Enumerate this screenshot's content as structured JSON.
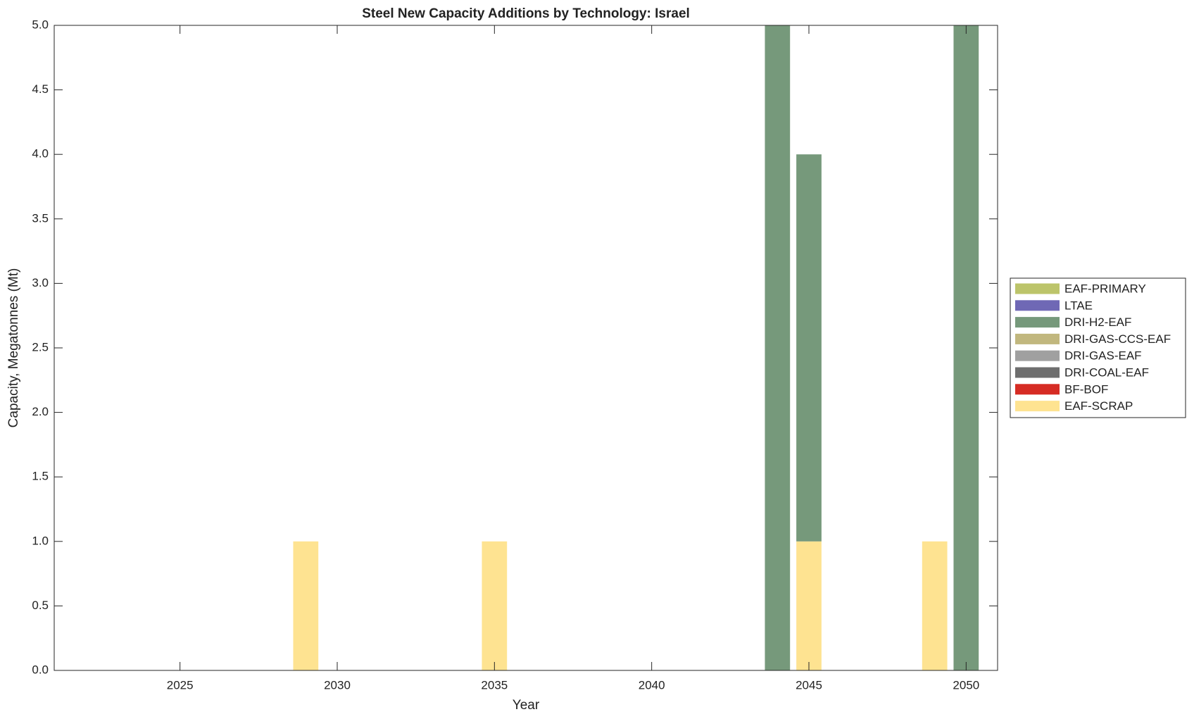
{
  "chart_data": {
    "type": "bar",
    "stacked": true,
    "title": "Steel New Capacity Additions by Technology: Israel",
    "xlabel": "Year",
    "ylabel": "Capacity, Megatonnes (Mt)",
    "x": [
      2029,
      2035,
      2044,
      2045,
      2049,
      2050
    ],
    "xlim": [
      2021,
      2051
    ],
    "xticks": [
      2025,
      2030,
      2035,
      2040,
      2045,
      2050
    ],
    "ylim": [
      0,
      5
    ],
    "yticks": [
      {
        "value": 0,
        "label": "0.0"
      },
      0.5,
      {
        "value": 1,
        "label": "1.0"
      },
      1.5,
      {
        "value": 2,
        "label": "2.0"
      },
      2.5,
      {
        "value": 3,
        "label": "3.0"
      },
      3.5,
      {
        "value": 4,
        "label": "4.0"
      },
      4.5,
      {
        "value": 5,
        "label": "5.0"
      }
    ],
    "grid": false,
    "legend": "outside right",
    "series": [
      {
        "name": "EAF-PRIMARY",
        "color": "#bcc46a",
        "values": [
          0,
          0,
          0,
          0,
          0,
          0
        ]
      },
      {
        "name": "LTAE",
        "color": "#6f68b5",
        "values": [
          0,
          0,
          0,
          0,
          0,
          0
        ]
      },
      {
        "name": "DRI-H2-EAF",
        "color": "#76997b",
        "values": [
          0,
          0,
          5,
          3,
          0,
          5
        ]
      },
      {
        "name": "DRI-GAS-CCS-EAF",
        "color": "#c1b77e",
        "values": [
          0,
          0,
          0,
          0,
          0,
          0
        ]
      },
      {
        "name": "DRI-GAS-EAF",
        "color": "#a0a0a0",
        "values": [
          0,
          0,
          0,
          0,
          0,
          0
        ]
      },
      {
        "name": "DRI-COAL-EAF",
        "color": "#6e6e6e",
        "values": [
          0,
          0,
          0,
          0,
          0,
          0
        ]
      },
      {
        "name": "BF-BOF",
        "color": "#d62c24",
        "values": [
          0,
          0,
          0,
          0,
          0,
          0
        ]
      },
      {
        "name": "EAF-SCRAP",
        "color": "#fee391",
        "values": [
          1,
          1,
          0,
          1,
          1,
          0
        ]
      }
    ]
  }
}
